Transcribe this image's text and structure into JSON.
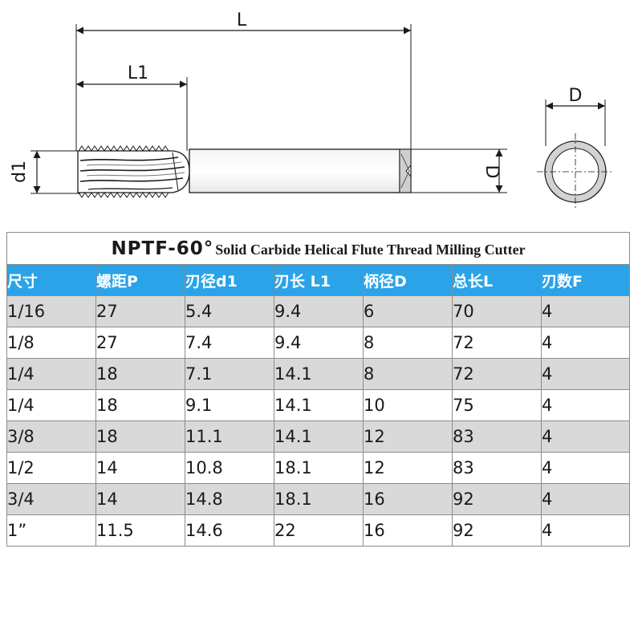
{
  "drawing": {
    "label_L": "L",
    "label_L1": "L1",
    "label_d1": "d1",
    "label_D": "D",
    "label_D_end": "D"
  },
  "table": {
    "title_main": "NPTF-60°",
    "title_sub": "Solid Carbide  Helical Flute Thread Milling Cutter",
    "headers": [
      "尺寸",
      "螺距P",
      "刃径d1",
      "刃长 L1",
      "柄径D",
      "总长L",
      "刃数F"
    ],
    "rows": [
      [
        "1/16",
        "27",
        "5.4",
        "9.4",
        "6",
        "70",
        "4"
      ],
      [
        "1/8",
        "27",
        "7.4",
        "9.4",
        "8",
        "72",
        "4"
      ],
      [
        "1/4",
        "18",
        "7.1",
        "14.1",
        "8",
        "72",
        "4"
      ],
      [
        "1/4",
        "18",
        "9.1",
        "14.1",
        "10",
        "75",
        "4"
      ],
      [
        "3/8",
        "18",
        "11.1",
        "14.1",
        "12",
        "83",
        "4"
      ],
      [
        "1/2",
        "14",
        "10.8",
        "18.1",
        "12",
        "83",
        "4"
      ],
      [
        "3/4",
        "14",
        "14.8",
        "18.1",
        "16",
        "92",
        "4"
      ],
      [
        "1”",
        "11.5",
        "14.6",
        "22",
        "16",
        "92",
        "4"
      ]
    ]
  },
  "colors": {
    "header_bg": "#2aa3e8",
    "stripe_bg": "#d9d9d9",
    "line": "#1a1a1a"
  }
}
